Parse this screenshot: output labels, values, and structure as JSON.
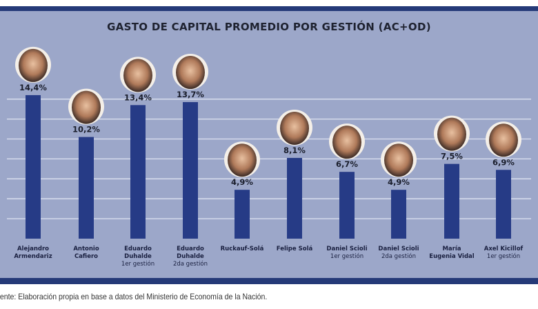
{
  "chart_data": {
    "type": "bar",
    "title": "GASTO DE CAPITAL PROMEDIO POR GESTIÓN (AC+OD)",
    "categories": [
      {
        "name": "Alejandro Armendariz",
        "lines": [
          "Alejandro",
          "Armendariz"
        ],
        "sub": ""
      },
      {
        "name": "Antonio Cafiero",
        "lines": [
          "Antonio",
          "Cafiero"
        ],
        "sub": ""
      },
      {
        "name": "Eduardo Duhalde",
        "lines": [
          "Eduardo",
          "Duhalde"
        ],
        "sub": "1er gestión"
      },
      {
        "name": "Eduardo Duhalde",
        "lines": [
          "Eduardo",
          "Duhalde"
        ],
        "sub": "2da gestión"
      },
      {
        "name": "Ruckauf-Solá",
        "lines": [
          "Ruckauf-Solá"
        ],
        "sub": ""
      },
      {
        "name": "Felipe Solá",
        "lines": [
          "Felipe Solá"
        ],
        "sub": ""
      },
      {
        "name": "Daniel Scioli",
        "lines": [
          "Daniel Scioli"
        ],
        "sub": "1er gestión"
      },
      {
        "name": "Daniel Scioli",
        "lines": [
          "Daniel Scioli"
        ],
        "sub": "2da gestión"
      },
      {
        "name": "María Eugenia Vidal",
        "lines": [
          "María",
          "Eugenia Vidal"
        ],
        "sub": ""
      },
      {
        "name": "Axel Kicillof",
        "lines": [
          "Axel Kicillof"
        ],
        "sub": "1er gestión"
      }
    ],
    "values": [
      14.4,
      10.2,
      13.4,
      13.7,
      4.9,
      8.1,
      6.7,
      4.9,
      7.5,
      6.9
    ],
    "value_labels": [
      "14,4%",
      "10,2%",
      "13,4%",
      "13,7%",
      "4,9%",
      "8,1%",
      "6,7%",
      "4,9%",
      "7,5%",
      "6,9%"
    ],
    "ylim": [
      0,
      14
    ],
    "grid": true,
    "gridline_step": 2,
    "bar_color": "#263b86",
    "background_color": "#9ca7c9",
    "portrait_photos": true
  },
  "source": "uente: Elaboración propia en base a datos del Ministerio de Economía de la Nación."
}
